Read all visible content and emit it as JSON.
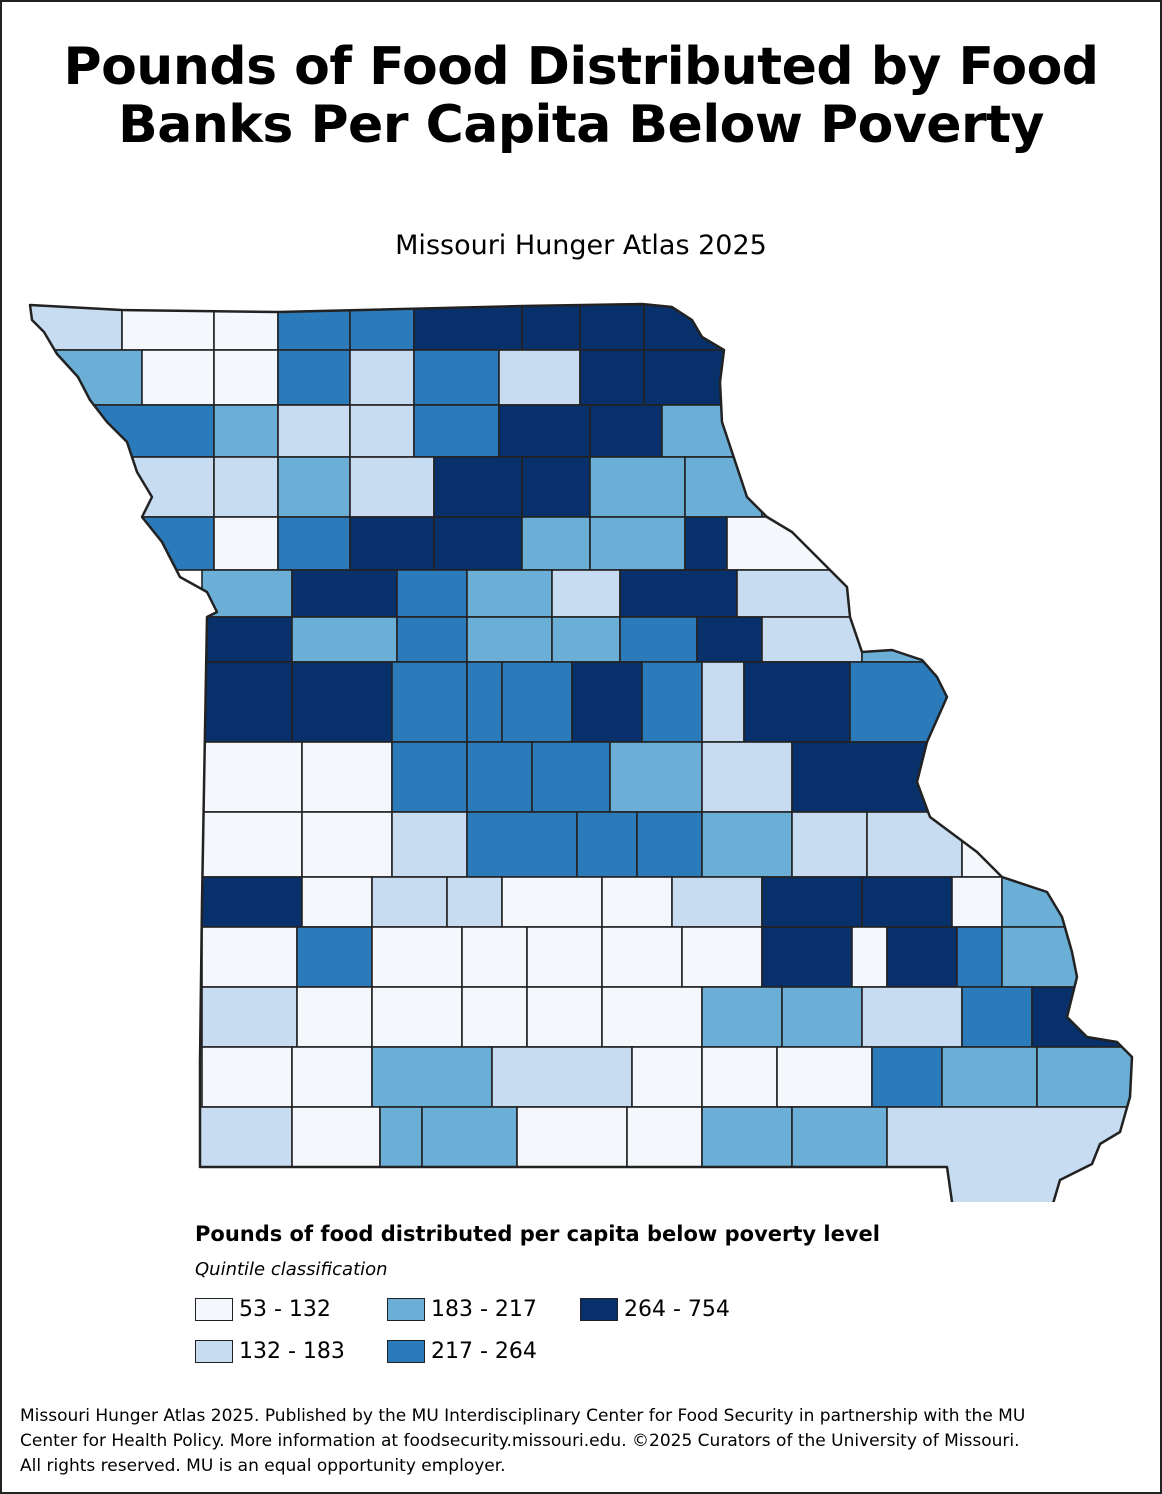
{
  "title_line1": "Pounds of Food Distributed by Food",
  "title_line2": "Banks Per Capita Below Poverty",
  "subtitle": "Missouri Hunger Atlas 2025",
  "legend": {
    "title": "Pounds of food distributed per capita below poverty level",
    "subtitle": "Quintile classification",
    "classes": [
      {
        "label": "53 - 132",
        "color": "#f4f8fd"
      },
      {
        "label": "132 - 183",
        "color": "#c7dcf0"
      },
      {
        "label": "183 - 217",
        "color": "#6baed6"
      },
      {
        "label": "217 - 264",
        "color": "#2b7bbb"
      },
      {
        "label": "264 - 754",
        "color": "#08306b"
      }
    ]
  },
  "footer": {
    "line1": "Missouri Hunger Atlas 2025. Published by the MU Interdisciplinary Center for Food Security in partnership with the MU",
    "line2": "Center for Health Policy. More information at foodsecurity.missouri.edu. ©2025 Curators of the University of Missouri.",
    "line3": "All rights reserved. MU is an equal opportunity employer."
  },
  "county_classes": [
    1,
    0,
    0,
    3,
    3,
    4,
    4,
    4,
    4,
    2,
    0,
    0,
    3,
    1,
    3,
    1,
    4,
    4,
    3,
    2,
    1,
    1,
    3,
    4,
    4,
    2,
    1,
    1,
    2,
    1,
    4,
    4,
    2,
    2,
    2,
    3,
    0,
    3,
    4,
    4,
    2,
    2,
    4,
    0,
    2,
    4,
    3,
    2,
    1,
    4,
    1,
    4,
    2,
    3,
    2,
    2,
    3,
    4,
    1,
    2,
    4,
    4,
    3,
    3,
    3,
    4,
    3,
    1,
    4,
    3,
    0,
    0,
    3,
    3,
    3,
    2,
    1,
    4,
    0,
    0,
    1,
    3,
    3,
    3,
    2,
    1,
    1,
    0,
    4,
    4,
    0,
    1,
    1,
    0,
    0,
    1,
    4,
    4,
    0,
    2,
    0,
    3,
    0,
    0,
    0,
    0,
    0,
    4,
    0,
    4,
    3,
    2,
    1,
    0,
    0,
    0,
    0,
    0,
    2,
    2,
    1,
    3,
    4,
    0,
    0,
    2,
    1,
    0,
    0,
    0,
    3,
    2,
    2,
    1,
    0,
    2,
    2,
    0,
    0,
    2,
    2,
    1
  ]
}
